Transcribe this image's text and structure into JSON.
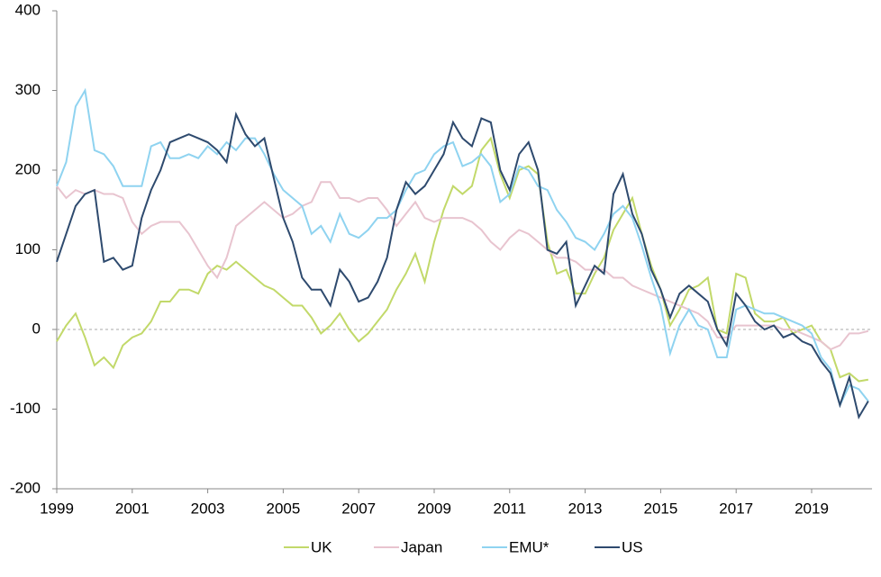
{
  "chart_data": {
    "type": "line",
    "x": [
      1999,
      1999.25,
      1999.5,
      1999.75,
      2000,
      2000.25,
      2000.5,
      2000.75,
      2001,
      2001.25,
      2001.5,
      2001.75,
      2002,
      2002.25,
      2002.5,
      2002.75,
      2003,
      2003.25,
      2003.5,
      2003.75,
      2004,
      2004.25,
      2004.5,
      2004.75,
      2005,
      2005.25,
      2005.5,
      2005.75,
      2006,
      2006.25,
      2006.5,
      2006.75,
      2007,
      2007.25,
      2007.5,
      2007.75,
      2008,
      2008.25,
      2008.5,
      2008.75,
      2009,
      2009.25,
      2009.5,
      2009.75,
      2010,
      2010.25,
      2010.5,
      2010.75,
      2011,
      2011.25,
      2011.5,
      2011.75,
      2012,
      2012.25,
      2012.5,
      2012.75,
      2013,
      2013.25,
      2013.5,
      2013.75,
      2014,
      2014.25,
      2014.5,
      2014.75,
      2015,
      2015.25,
      2015.5,
      2015.75,
      2016,
      2016.25,
      2016.5,
      2016.75,
      2017,
      2017.25,
      2017.5,
      2017.75,
      2018,
      2018.25,
      2018.5,
      2018.75,
      2019,
      2019.25,
      2019.5,
      2019.75,
      2020,
      2020.25,
      2020.5
    ],
    "series": [
      {
        "name": "UK",
        "color": "#c2d96a",
        "values": [
          -15,
          5,
          20,
          -10,
          -45,
          -35,
          -48,
          -20,
          -10,
          -5,
          10,
          35,
          35,
          50,
          50,
          45,
          70,
          80,
          75,
          85,
          75,
          65,
          55,
          50,
          40,
          30,
          30,
          15,
          -5,
          5,
          20,
          0,
          -15,
          -5,
          10,
          25,
          50,
          70,
          95,
          60,
          110,
          150,
          180,
          170,
          180,
          225,
          240,
          195,
          165,
          200,
          205,
          195,
          110,
          70,
          75,
          45,
          45,
          70,
          90,
          125,
          145,
          165,
          120,
          80,
          50,
          5,
          25,
          50,
          55,
          65,
          0,
          -5,
          70,
          65,
          20,
          10,
          10,
          15,
          -5,
          0,
          5,
          -15,
          -25,
          -60,
          -55,
          -65,
          -63
        ]
      },
      {
        "name": "Japan",
        "color": "#e8c4cf",
        "values": [
          180,
          165,
          175,
          170,
          175,
          170,
          170,
          165,
          135,
          120,
          130,
          135,
          135,
          135,
          120,
          100,
          80,
          65,
          90,
          130,
          140,
          150,
          160,
          150,
          140,
          145,
          155,
          160,
          185,
          185,
          165,
          165,
          160,
          165,
          165,
          150,
          130,
          145,
          160,
          140,
          135,
          140,
          140,
          140,
          135,
          125,
          110,
          100,
          115,
          125,
          120,
          110,
          100,
          90,
          90,
          85,
          75,
          75,
          75,
          65,
          65,
          55,
          50,
          45,
          40,
          35,
          30,
          25,
          20,
          10,
          -10,
          -10,
          5,
          5,
          5,
          5,
          5,
          0,
          0,
          -5,
          -10,
          -15,
          -25,
          -20,
          -5,
          -5,
          -2
        ]
      },
      {
        "name": "EMU*",
        "color": "#8fd3f0",
        "values": [
          180,
          210,
          280,
          300,
          225,
          220,
          205,
          180,
          180,
          180,
          230,
          235,
          215,
          215,
          220,
          215,
          230,
          220,
          235,
          225,
          240,
          240,
          220,
          195,
          175,
          165,
          155,
          120,
          130,
          110,
          145,
          120,
          115,
          125,
          140,
          140,
          150,
          175,
          195,
          200,
          220,
          230,
          235,
          205,
          210,
          220,
          205,
          160,
          170,
          205,
          200,
          180,
          175,
          150,
          135,
          115,
          110,
          100,
          120,
          145,
          155,
          140,
          105,
          65,
          30,
          -30,
          5,
          25,
          5,
          0,
          -35,
          -35,
          25,
          30,
          25,
          20,
          20,
          15,
          10,
          5,
          -5,
          -35,
          -50,
          -95,
          -70,
          -75,
          -90
        ]
      },
      {
        "name": "US",
        "color": "#2e4a6e",
        "values": [
          85,
          120,
          155,
          170,
          175,
          85,
          90,
          75,
          80,
          140,
          175,
          200,
          235,
          240,
          245,
          240,
          235,
          225,
          210,
          270,
          245,
          230,
          240,
          190,
          140,
          110,
          65,
          50,
          50,
          30,
          75,
          60,
          35,
          40,
          60,
          90,
          150,
          185,
          170,
          180,
          200,
          220,
          260,
          240,
          230,
          265,
          260,
          200,
          175,
          220,
          235,
          200,
          100,
          95,
          110,
          30,
          55,
          80,
          70,
          170,
          195,
          145,
          120,
          75,
          50,
          15,
          45,
          55,
          45,
          35,
          0,
          -20,
          45,
          30,
          10,
          0,
          5,
          -10,
          -5,
          -15,
          -20,
          -40,
          -55,
          -95,
          -60,
          -110,
          -90
        ]
      }
    ],
    "xlim": [
      1999,
      2020.6
    ],
    "xticks": [
      1999,
      2001,
      2003,
      2005,
      2007,
      2009,
      2011,
      2013,
      2015,
      2017,
      2019
    ],
    "ylim": [
      -200,
      400
    ],
    "yticks": [
      -200,
      -100,
      0,
      100,
      200,
      300,
      400
    ]
  }
}
